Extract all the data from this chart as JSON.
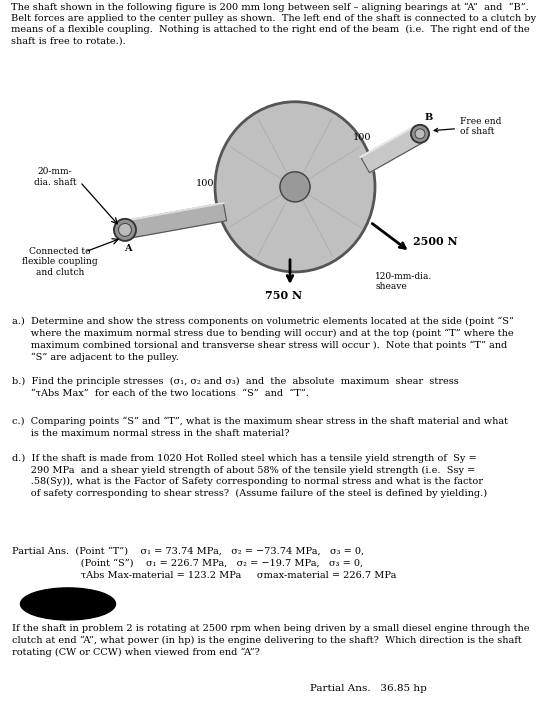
{
  "fig_width": 5.38,
  "fig_height": 7.12,
  "bg_color": "#ffffff",
  "separator_color": "#444444",
  "title_text": "The shaft shown in the following figure is 200 mm long between self – aligning bearings at “A”  and  “B”.\nBelt forces are applied to the center pulley as shown.  The left end of the shaft is connected to a clutch by\nmeans of a flexible coupling.  Nothing is attached to the right end of the beam  (i.e.  The right end of the\nshaft is free to rotate.).",
  "part_a_text": "a.)  Determine and show the stress components on volumetric elements located at the side (point “S”\n      where the maximum normal stress due to bending will occur) and at the top (point “T” where the\n      maximum combined torsional and transverse shear stress will occur ).  Note that points “T” and\n      “S” are adjacent to the pulley.",
  "part_b_text": "b.)  Find the principle stresses  (σ₁, σ₂ and σ₃)  and  the  absolute  maximum  shear  stress\n      “τAbs Max”  for each of the two locations  “S”  and  “T”.",
  "part_c_text": "c.)  Comparing points “S” and “T”, what is the maximum shear stress in the shaft material and what\n      is the maximum normal stress in the shaft material?",
  "part_d_text": "d.)  If the shaft is made from 1020 Hot Rolled steel which has a tensile yield strength of  Sy =\n      290 MPa  and a shear yield strength of about 58% of the tensile yield strength (i.e.  Ssy =\n      .58(Sy)), what is the Factor of Safety corresponding to normal stress and what is the factor\n      of safety corresponding to shear stress?  (Assume failure of the steel is defined by yielding.)",
  "partial_ans_line1": "Partial Ans.  (Point “T”)    σ₁ = 73.74 MPa,   σ₂ = −73.74 MPa,   σ₃ = 0,",
  "partial_ans_line2": "                      (Point “S”)    σ₁ = 226.7 MPa,   σ₂ = −19.7 MPa,   σ₃ = 0,",
  "partial_ans_line3": "                      τAbs Max-material = 123.2 MPa     σmax-material = 226.7 MPa",
  "last_paragraph": "If the shaft in problem 2 is rotating at 2500 rpm when being driven by a small diesel engine through the\nclutch at end “A”, what power (in hp) is the engine delivering to the shaft?  Which direction is the shaft\nrotating (CW or CCW) when viewed from end “A”?",
  "last_ans": "Partial Ans.   36.85 hp"
}
